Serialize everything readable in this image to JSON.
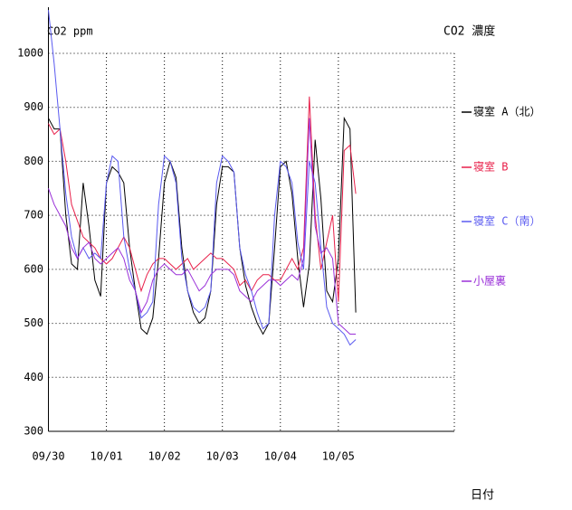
{
  "chart_data": {
    "type": "line",
    "title": "CO2 濃度",
    "y_label": "CO2 ppm",
    "x_label": "日付",
    "xlim": [
      0,
      7
    ],
    "xticks": [
      {
        "value": 0,
        "label": "09/30"
      },
      {
        "value": 1,
        "label": "10/01"
      },
      {
        "value": 2,
        "label": "10/02"
      },
      {
        "value": 3,
        "label": "10/03"
      },
      {
        "value": 4,
        "label": "10/04"
      },
      {
        "value": 5,
        "label": "10/05"
      }
    ],
    "ylim": [
      300,
      1000
    ],
    "yticks": [
      300,
      400,
      500,
      600,
      700,
      800,
      900,
      1000
    ],
    "grid": true,
    "legend": "right",
    "x": [
      0,
      0.1,
      0.2,
      0.3,
      0.4,
      0.5,
      0.6,
      0.7,
      0.8,
      0.9,
      1,
      1.1,
      1.2,
      1.3,
      1.4,
      1.5,
      1.6,
      1.7,
      1.8,
      1.9,
      2,
      2.1,
      2.2,
      2.3,
      2.4,
      2.5,
      2.6,
      2.7,
      2.8,
      2.9,
      3,
      3.1,
      3.2,
      3.3,
      3.4,
      3.5,
      3.6,
      3.7,
      3.8,
      3.9,
      4,
      4.1,
      4.2,
      4.3,
      4.4,
      4.5,
      4.6,
      4.7,
      4.8,
      4.9,
      5,
      5.1,
      5.2,
      5.3
    ],
    "series": [
      {
        "name": "寝室 A（北）",
        "color": "#000000",
        "values": [
          880,
          860,
          860,
          700,
          610,
          600,
          760,
          680,
          580,
          550,
          760,
          790,
          780,
          760,
          640,
          560,
          490,
          480,
          510,
          620,
          760,
          800,
          770,
          640,
          560,
          520,
          500,
          510,
          560,
          720,
          790,
          790,
          780,
          640,
          570,
          530,
          500,
          480,
          500,
          640,
          790,
          800,
          740,
          620,
          530,
          610,
          840,
          730,
          560,
          540,
          620,
          880,
          860,
          520
        ]
      },
      {
        "name": "寝室 B",
        "color": "#e8204a",
        "values": [
          870,
          850,
          860,
          800,
          720,
          690,
          660,
          650,
          640,
          620,
          610,
          620,
          640,
          660,
          640,
          600,
          560,
          590,
          610,
          620,
          620,
          610,
          600,
          610,
          620,
          600,
          610,
          620,
          630,
          620,
          620,
          610,
          600,
          570,
          580,
          560,
          580,
          590,
          590,
          580,
          580,
          600,
          620,
          600,
          640,
          920,
          700,
          600,
          650,
          700,
          540,
          820,
          830,
          740
        ]
      },
      {
        "name": "寝室 C（南）",
        "color": "#5a5af0",
        "values": [
          1080,
          980,
          860,
          740,
          660,
          620,
          640,
          620,
          630,
          620,
          760,
          810,
          800,
          660,
          600,
          560,
          510,
          520,
          540,
          720,
          810,
          800,
          760,
          620,
          560,
          530,
          520,
          530,
          560,
          760,
          810,
          800,
          780,
          640,
          590,
          560,
          520,
          490,
          500,
          700,
          800,
          790,
          760,
          650,
          600,
          800,
          760,
          640,
          530,
          500,
          490,
          480,
          460,
          470
        ]
      },
      {
        "name": "小屋裏",
        "color": "#9a30d8",
        "values": [
          750,
          720,
          700,
          680,
          640,
          620,
          640,
          650,
          620,
          610,
          620,
          630,
          640,
          620,
          580,
          560,
          520,
          540,
          580,
          600,
          610,
          600,
          590,
          590,
          600,
          580,
          560,
          570,
          590,
          600,
          600,
          600,
          590,
          560,
          550,
          540,
          560,
          570,
          580,
          580,
          570,
          580,
          590,
          580,
          620,
          880,
          680,
          630,
          640,
          620,
          500,
          490,
          480,
          480
        ]
      }
    ]
  }
}
